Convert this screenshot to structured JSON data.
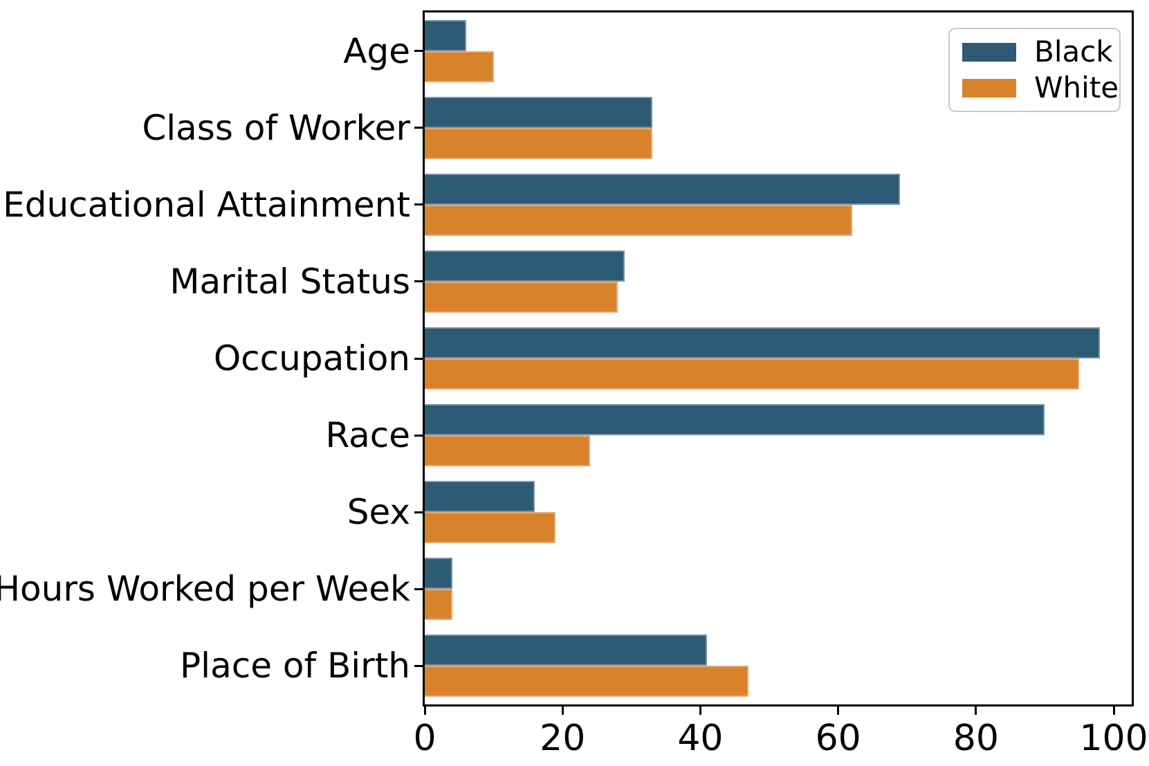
{
  "chart_data": {
    "type": "bar",
    "orientation": "horizontal",
    "title": "",
    "xlabel": "",
    "ylabel": "",
    "categories": [
      "Age",
      "Class of Worker",
      "Educational Attainment",
      "Marital Status",
      "Occupation",
      "Race",
      "Sex",
      "Hours Worked per Week",
      "Place of Birth"
    ],
    "series": [
      {
        "name": "Black",
        "color": "#2d5a74",
        "values": [
          6,
          33,
          69,
          29,
          98,
          90,
          16,
          4,
          41
        ]
      },
      {
        "name": "White",
        "color": "#d8822c",
        "values": [
          10,
          33,
          62,
          28,
          95,
          24,
          19,
          4,
          47
        ]
      }
    ],
    "x_ticks": [
      "0",
      "20",
      "40",
      "60",
      "80",
      "100"
    ],
    "x_tick_values": [
      0,
      20,
      40,
      60,
      80,
      100
    ],
    "xlim": [
      0,
      102.6
    ],
    "grid": false,
    "legend": {
      "position": "upper-right",
      "entries": [
        {
          "label": "Black",
          "color": "#2d5a74"
        },
        {
          "label": "White",
          "color": "#d8822c"
        }
      ]
    },
    "axis_color": "#000000",
    "background_color": "#ffffff"
  }
}
